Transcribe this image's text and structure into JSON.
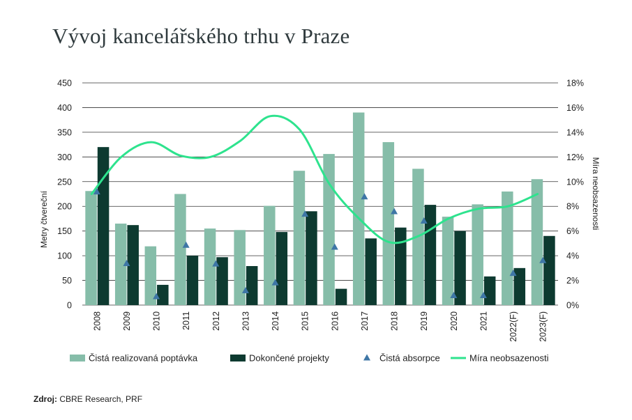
{
  "title": "Vývoj kancelářského trhu v Praze",
  "source": {
    "label": "Zdroj:",
    "text": "CBRE Research, PRF"
  },
  "chart_data": {
    "type": "bar",
    "categories": [
      "2008",
      "2009",
      "2010",
      "2011",
      "2012",
      "2013",
      "2014",
      "2015",
      "2016",
      "2017",
      "2018",
      "2019",
      "2020",
      "2021",
      "2022(F)",
      "2023(F)"
    ],
    "ylabel": "Metry čtvereční",
    "y2label": "Míra neobsazenosti",
    "ylim": [
      0,
      450
    ],
    "y_ticks": [
      0,
      50,
      100,
      150,
      200,
      250,
      300,
      350,
      400,
      450
    ],
    "y2lim": [
      0,
      18
    ],
    "y2_ticks": [
      "0%",
      "2%",
      "4%",
      "6%",
      "8%",
      "10%",
      "12%",
      "14%",
      "16%",
      "18%"
    ],
    "grid": true,
    "legend_position": "bottom",
    "colors": {
      "demand": "#86bda9",
      "completions": "#0d3a30",
      "absorption": "#3e76a6",
      "vacancy": "#2ee38e",
      "grid": "#333333",
      "text": "#1e1e1e"
    },
    "series": [
      {
        "name": "Čistá realizovaná poptávka",
        "kind": "bar",
        "values": [
          231,
          165,
          119,
          225,
          155,
          152,
          201,
          272,
          306,
          390,
          330,
          276,
          179,
          204,
          230,
          255
        ]
      },
      {
        "name": "Dokončené projekty",
        "kind": "bar",
        "values": [
          320,
          162,
          41,
          100,
          97,
          79,
          148,
          190,
          33,
          135,
          157,
          203,
          150,
          58,
          75,
          140
        ]
      },
      {
        "name": "Čistá absorpce",
        "kind": "marker",
        "values": [
          229,
          84,
          17,
          121,
          83,
          29,
          45,
          184,
          117,
          219,
          189,
          170,
          19,
          19,
          64,
          90
        ]
      },
      {
        "name": "Míra neobsazenosti",
        "kind": "line",
        "axis": "right",
        "values": [
          9.0,
          12.0,
          13.2,
          12.1,
          12.0,
          13.3,
          15.3,
          14.2,
          9.8,
          7.0,
          5.1,
          5.6,
          7.0,
          7.8,
          8.0,
          9.0
        ]
      }
    ]
  }
}
